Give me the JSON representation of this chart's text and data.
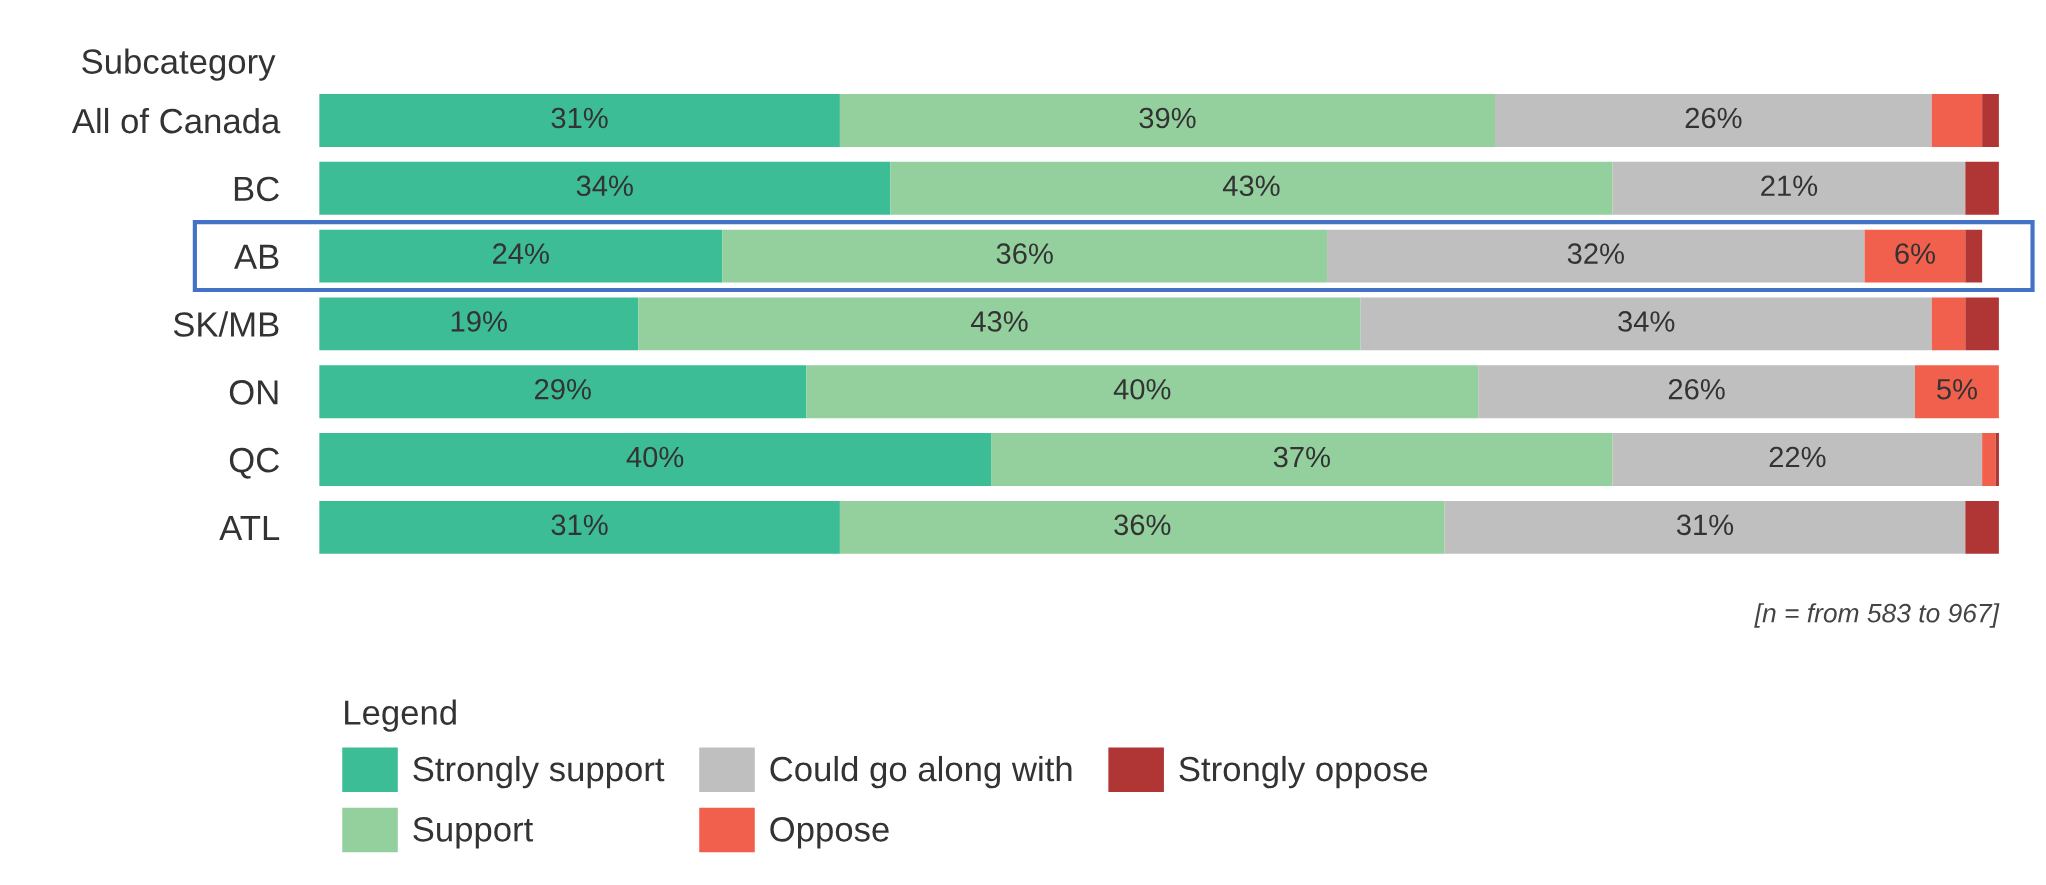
{
  "chart_data": {
    "type": "bar",
    "orientation": "horizontal",
    "stacked": true,
    "ylabel": "Subcategory",
    "legend_title": "Legend",
    "legend": "bottom",
    "xlim": [
      0,
      100
    ],
    "tick_labels": "y",
    "grid": false,
    "categories": [
      "All of Canada",
      "BC",
      "AB",
      "SK/MB",
      "ON",
      "QC",
      "ATL"
    ],
    "series": [
      {
        "name": "Strongly support",
        "color": "#3dbd96",
        "values": [
          31,
          34,
          24,
          19,
          29,
          40,
          31
        ],
        "value_labels": [
          "31%",
          "34%",
          "24%",
          "19%",
          "29%",
          "40%",
          "31%"
        ]
      },
      {
        "name": "Support",
        "color": "#93d09e",
        "values": [
          39,
          43,
          36,
          43,
          40,
          37,
          36
        ],
        "value_labels": [
          "39%",
          "43%",
          "36%",
          "43%",
          "40%",
          "37%",
          "36%"
        ]
      },
      {
        "name": "Could go along with",
        "color": "#bfbfbf",
        "values": [
          26,
          21,
          32,
          34,
          26,
          22,
          31
        ],
        "value_labels": [
          "26%",
          "21%",
          "32%",
          "34%",
          "26%",
          "22%",
          "31%"
        ]
      },
      {
        "name": "Oppose",
        "color": "#f0604d",
        "values": [
          3,
          0,
          6,
          2,
          5,
          0.8,
          0
        ],
        "value_labels": [
          null,
          null,
          "6%",
          null,
          "5%",
          null,
          null
        ]
      },
      {
        "name": "Strongly oppose",
        "color": "#b03535",
        "values": [
          1,
          2,
          1,
          2,
          0,
          0.6,
          2
        ],
        "value_labels": [
          null,
          null,
          null,
          null,
          null,
          null,
          null
        ]
      }
    ],
    "bands": [
      {
        "axis": "y",
        "from": "AB",
        "to": "AB",
        "color": "#4472c4"
      }
    ],
    "annotations": [
      "[n = from 583 to 967]"
    ]
  }
}
